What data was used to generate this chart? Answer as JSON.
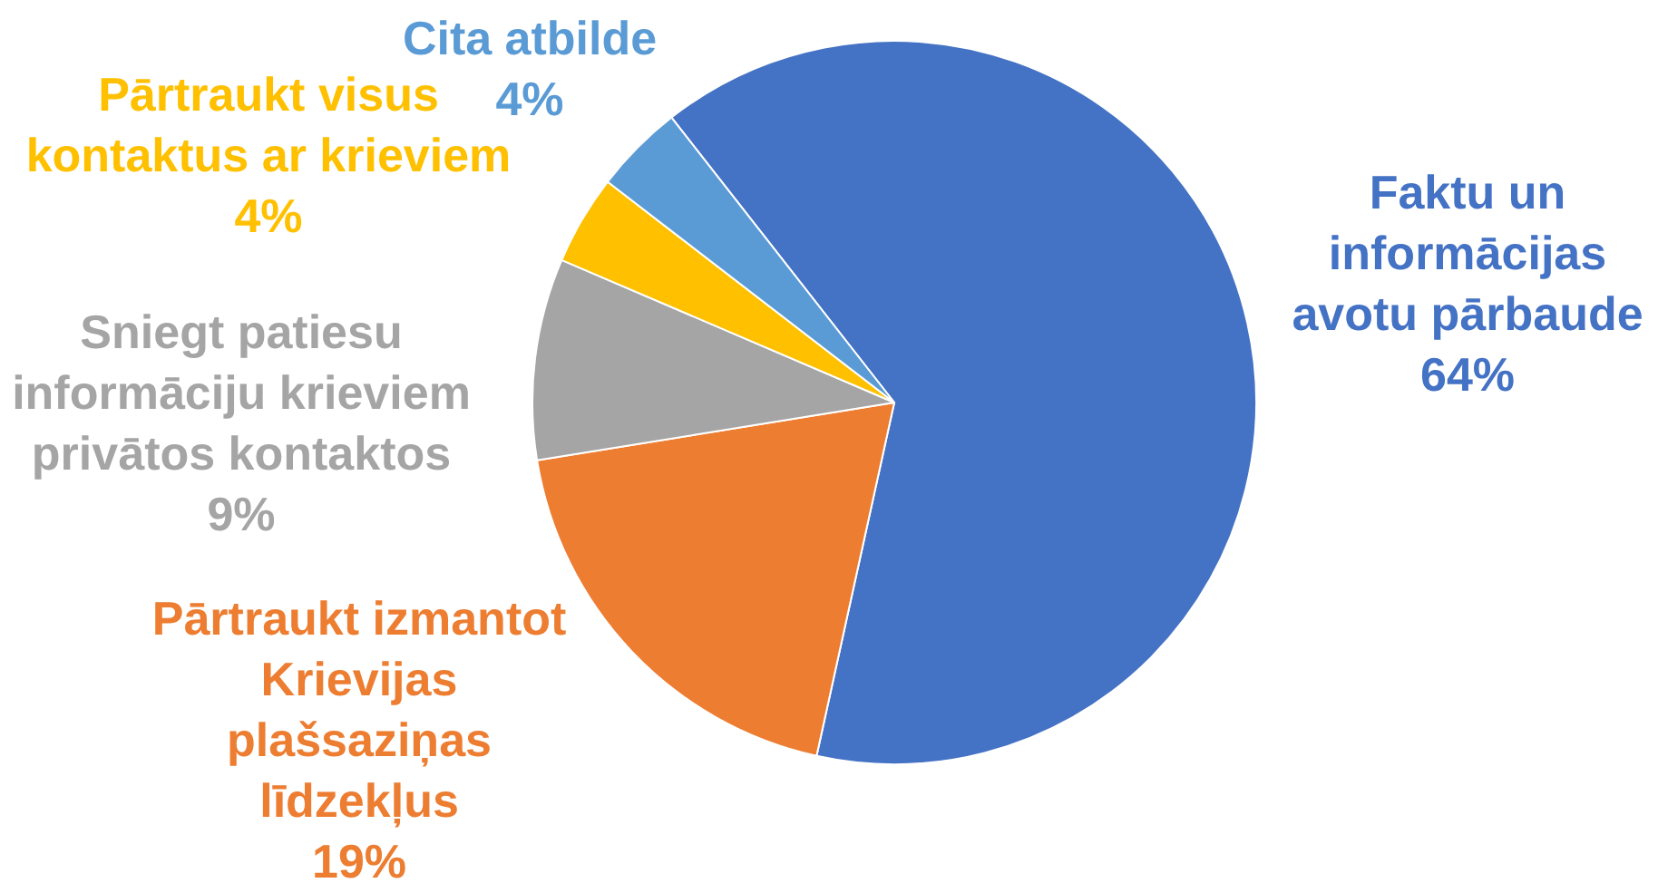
{
  "chart_data": {
    "type": "pie",
    "categories": [
      "Faktu un informācijas avotu pārbaude",
      "Pārtraukt izmantot Krievijas plašsaziņas līdzekļus",
      "Sniegt patiesu informāciju krieviem privātos kontaktos",
      "Pārtraukt visus kontaktus ar krieviem",
      "Cita atbilde"
    ],
    "values": [
      64,
      19,
      9,
      4,
      4
    ],
    "colors": [
      "#4472c4",
      "#ed7d31",
      "#a5a5a5",
      "#ffc000",
      "#5b9bd5"
    ],
    "value_labels": [
      "64%",
      "19%",
      "9%",
      "4%",
      "4%"
    ]
  }
}
